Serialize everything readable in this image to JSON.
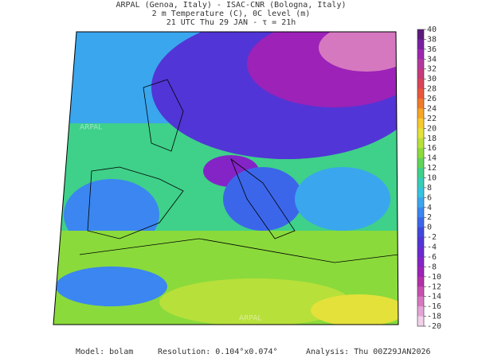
{
  "header": {
    "lines": [
      "ARPAL (Genoa, Italy)  -  ISAC-CNR (Bologna, Italy)",
      "2 m Temperature (C), 0C level (m)",
      "21 UTC Thu 29 JAN  -  τ = 21h"
    ]
  },
  "colorbar": {
    "ticks": [
      40,
      38,
      36,
      34,
      32,
      30,
      28,
      26,
      24,
      22,
      20,
      18,
      16,
      14,
      12,
      10,
      8,
      6,
      4,
      2,
      0,
      -2,
      -4,
      -6,
      -8,
      -10,
      -12,
      -14,
      -16,
      -18,
      -20
    ],
    "colors": [
      "#5c1a7a",
      "#7a1fa2",
      "#9c27b0",
      "#b3389e",
      "#c43a7a",
      "#d8435a",
      "#e8573c",
      "#f07a2a",
      "#f5a623",
      "#f7c92e",
      "#e4e13a",
      "#b8e03a",
      "#8ada3c",
      "#5fd45a",
      "#3fd08a",
      "#36cdb8",
      "#35c3e0",
      "#3aa6ee",
      "#3b86f0",
      "#3c66ea",
      "#4048dc",
      "#5235d6",
      "#6a2ad0",
      "#8424c6",
      "#9c22b8",
      "#b230a8",
      "#c650b0",
      "#d678c0",
      "#e4a4d6",
      "#f2d0ea"
    ]
  },
  "watermark": "ARPAL",
  "footer": {
    "model": "Model: bolam",
    "resolution": "Resolution: 0.104°x0.074°",
    "analysis": "Analysis: Thu 00Z29JAN2026"
  }
}
